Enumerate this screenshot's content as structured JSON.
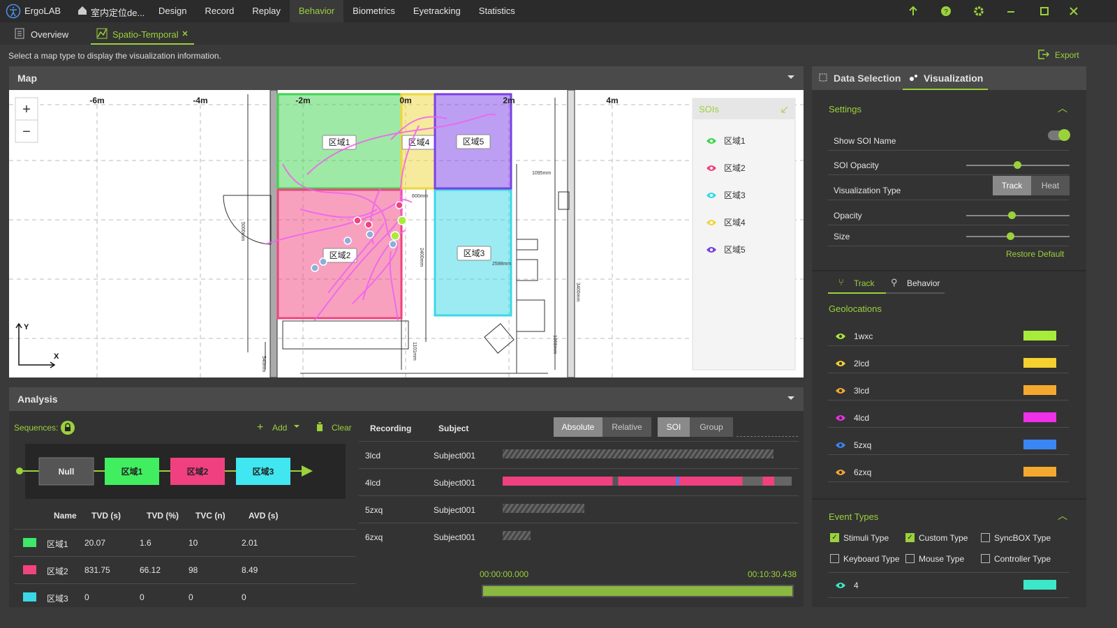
{
  "app": {
    "name": "ErgoLAB",
    "project": "室内定位de...",
    "menu": [
      "Design",
      "Record",
      "Replay",
      "Behavior",
      "Biometrics",
      "Eyetracking",
      "Statistics"
    ]
  },
  "tabs": [
    "Overview",
    "Spatio-Temporal"
  ],
  "hint": "Select a map type to display the visualization information.",
  "export": "Export",
  "map": {
    "title": "Map",
    "zoom_in": "+",
    "zoom_out": "−",
    "x_ticks": [
      "-6m",
      "-4m",
      "-2m",
      "0m",
      "2m",
      "4m"
    ],
    "axis_y": "Y",
    "axis_x": "X",
    "zones": [
      {
        "label": "区域1",
        "color": "#3fd44d"
      },
      {
        "label": "区域2",
        "color": "#f0437f"
      },
      {
        "label": "区域3",
        "color": "#3ad8e6"
      },
      {
        "label": "区域4",
        "color": "#eed63c"
      },
      {
        "label": "区域5",
        "color": "#7a3fe6"
      }
    ],
    "plan_labels": [
      "1095mm",
      "600mm",
      "2400mm",
      "5000mm",
      "3400mm",
      "1368mm",
      "1101mm",
      "540mm",
      "2598mm"
    ],
    "soi_title": "SOIs"
  },
  "analysis": {
    "title": "Analysis",
    "sequences_label": "Sequences:",
    "add": "Add",
    "clear": "Clear",
    "sequence": [
      {
        "label": "Null",
        "color": "#555555"
      },
      {
        "label": "区域1",
        "color": "#40ee60"
      },
      {
        "label": "区域2",
        "color": "#f04080"
      },
      {
        "label": "区域3",
        "color": "#40e6f0"
      }
    ],
    "table": {
      "headers": [
        "Name",
        "TVD (s)",
        "TVD (%)",
        "TVC (n)",
        "AVD (s)"
      ],
      "colors": [
        "#3de86a",
        "#f0437f",
        "#3ad8e6"
      ],
      "rows": [
        [
          "区域1",
          "20.07",
          "1.6",
          "10",
          "2.01"
        ],
        [
          "区域2",
          "831.75",
          "66.12",
          "98",
          "8.49"
        ],
        [
          "区域3",
          "0",
          "0",
          "0",
          "0"
        ]
      ]
    },
    "timeline": {
      "headers": [
        "Recording",
        "Subject"
      ],
      "modes": [
        "Absolute",
        "Relative"
      ],
      "groupings": [
        "SOI",
        "Group"
      ],
      "rows": [
        [
          "3lcd",
          "Subject001"
        ],
        [
          "4lcd",
          "Subject001"
        ],
        [
          "5zxq",
          "Subject001"
        ],
        [
          "6zxq",
          "Subject001"
        ]
      ],
      "start": "00:00:00.000",
      "end": "00:10:30.438"
    }
  },
  "panel": {
    "tabs": [
      "Data Selection",
      "Visualization"
    ],
    "settings": {
      "title": "Settings",
      "show_soi_name": "Show SOI Name",
      "soi_opacity": "SOI Opacity",
      "viz_type": "Visualization Type",
      "viz_options": [
        "Track",
        "Heat"
      ],
      "opacity": "Opacity",
      "size": "Size",
      "restore": "Restore Default"
    },
    "subtabs": [
      "Track",
      "Behavior"
    ],
    "geolocations": {
      "title": "Geolocations",
      "items": [
        {
          "name": "1wxc",
          "color": "#a8ec3a"
        },
        {
          "name": "2lcd",
          "color": "#f5d030"
        },
        {
          "name": "3lcd",
          "color": "#f5a830"
        },
        {
          "name": "4lcd",
          "color": "#f030e8"
        },
        {
          "name": "5zxq",
          "color": "#3a86f5"
        },
        {
          "name": "6zxq",
          "color": "#f5a830"
        }
      ]
    },
    "event_types": {
      "title": "Event Types",
      "types": [
        {
          "label": "Stimuli Type",
          "checked": true
        },
        {
          "label": "Custom Type",
          "checked": true
        },
        {
          "label": "SyncBOX Type",
          "checked": false
        },
        {
          "label": "Keyboard Type",
          "checked": false
        },
        {
          "label": "Mouse Type",
          "checked": false
        },
        {
          "label": "Controller Type",
          "checked": false
        }
      ],
      "items": [
        {
          "name": "4",
          "color": "#3ce8c8"
        }
      ]
    }
  }
}
